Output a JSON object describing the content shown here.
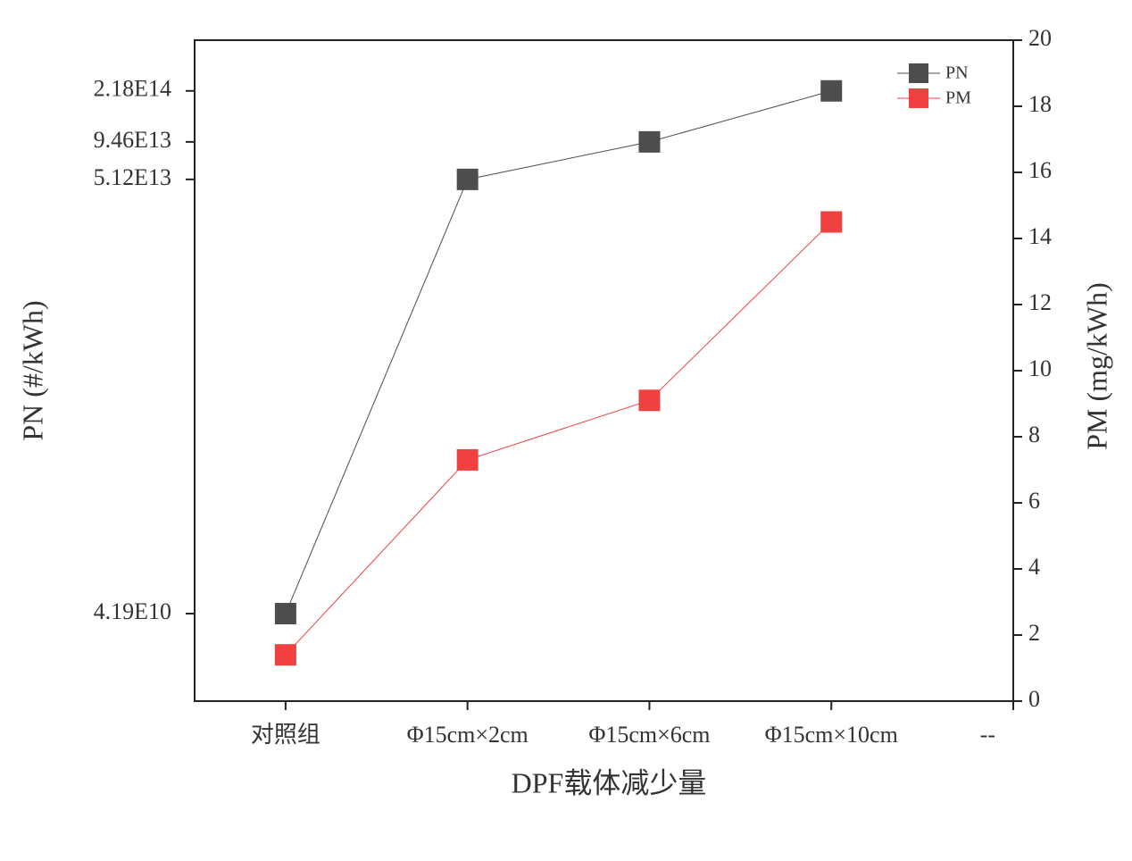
{
  "chart_data": {
    "type": "line",
    "xlabel": "DPF载体减少量",
    "ylabel": "PN (#/kWh)",
    "y2label": "PM (mg/kWh)",
    "categories": [
      "对照组",
      "Φ15cm×2cm",
      "Φ15cm×6cm",
      "Φ15cm×10cm",
      "--"
    ],
    "series": [
      {
        "name": "PN",
        "color": "#4d4d4d",
        "values": [
          41900000000,
          51200000000000,
          94600000000000,
          218000000000000,
          null
        ]
      },
      {
        "name": "PM",
        "color": "#f04040",
        "axis": "y2",
        "values": [
          1.4,
          7.3,
          9.1,
          14.5,
          null
        ]
      }
    ],
    "ylog": true,
    "ylim": [
      10000000000,
      500000000000000
    ],
    "yticks": [
      {
        "value": 41900000000,
        "label": "4.19E10"
      },
      {
        "value": 51200000000000,
        "label": "5.12E13"
      },
      {
        "value": 94600000000000,
        "label": "9.46E13"
      },
      {
        "value": 218000000000000,
        "label": "2.18E14"
      }
    ],
    "y2lim": [
      0,
      20
    ],
    "y2ticks": [
      0,
      2,
      4,
      6,
      8,
      10,
      12,
      14,
      16,
      18,
      20
    ],
    "legend": "upper right",
    "grid": false
  }
}
